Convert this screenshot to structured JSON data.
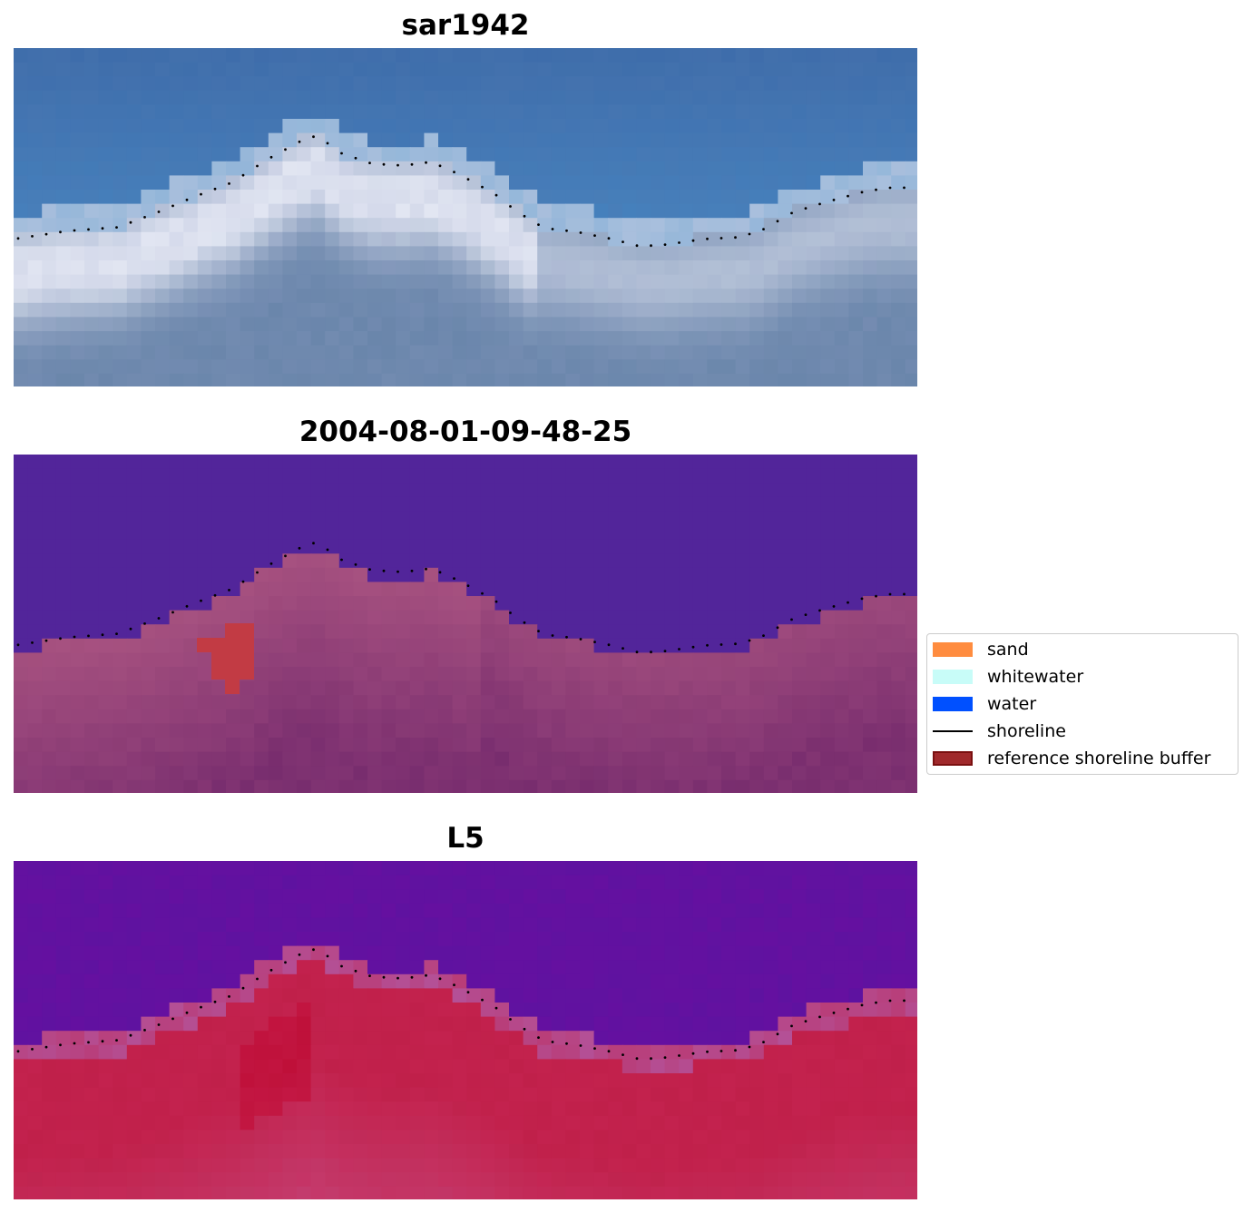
{
  "panels": [
    {
      "title": "sar1942",
      "kind": "rgb"
    },
    {
      "title": "2004-08-01-09-48-25",
      "kind": "classified"
    },
    {
      "title": "L5",
      "kind": "index"
    }
  ],
  "legend": {
    "items": [
      {
        "label": "sand",
        "type": "patch",
        "color": "#ff8c3f"
      },
      {
        "label": "whitewater",
        "type": "patch",
        "color": "#c8fcf8"
      },
      {
        "label": "water",
        "type": "patch",
        "color": "#0050ff"
      },
      {
        "label": "shoreline",
        "type": "line",
        "color": "#000000"
      },
      {
        "label": "reference shoreline buffer",
        "type": "patch",
        "color": "#a0292b"
      }
    ]
  },
  "colors": {
    "sea_rgb": "#4676ad",
    "surf_rgb": "#e2e6f2",
    "land_rgb": "#6a86ab",
    "water_class": "#52259a",
    "land_class": "#a6517f",
    "buffer_class": "#c23b44",
    "water_index": "#6510a0",
    "land_index": "#c0204a"
  }
}
